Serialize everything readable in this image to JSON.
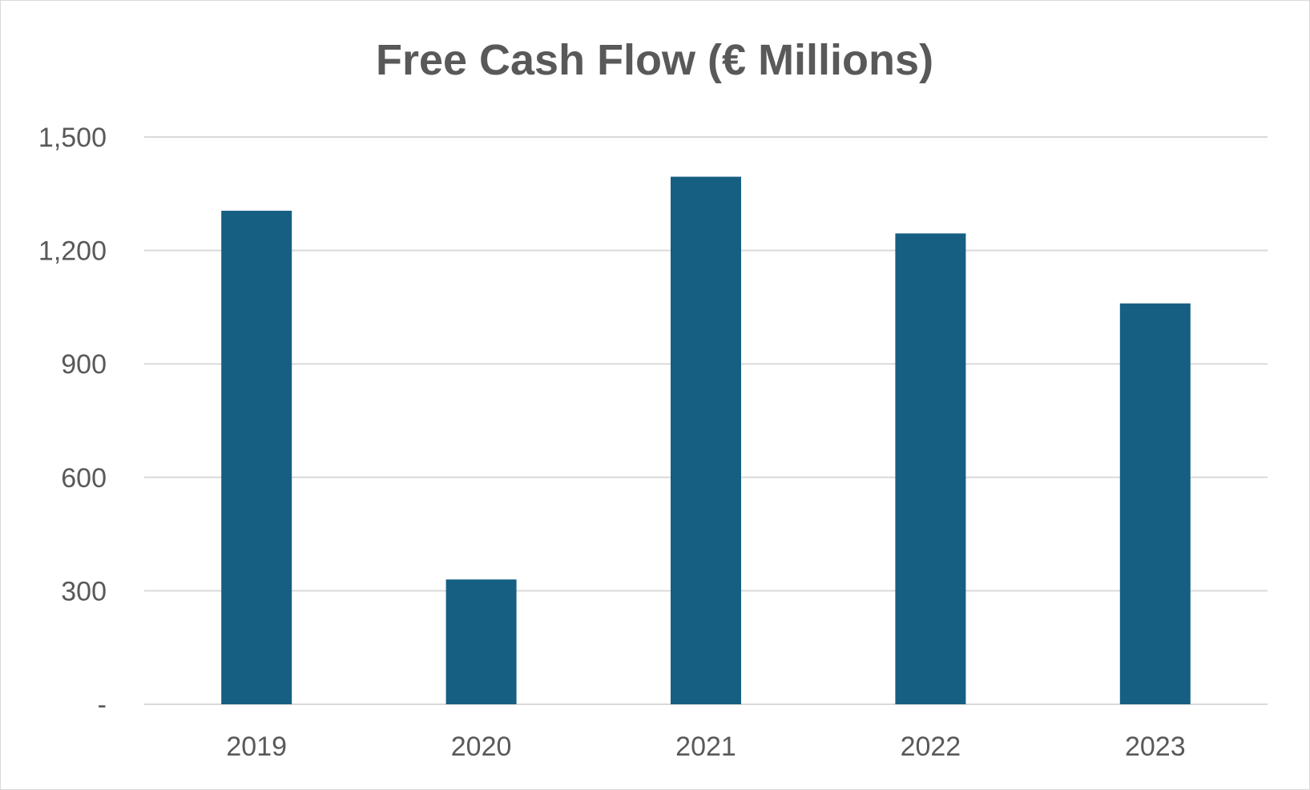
{
  "chart_data": {
    "type": "bar",
    "title": "Free Cash Flow (€ Millions)",
    "xlabel": "",
    "ylabel": "",
    "categories": [
      "2019",
      "2020",
      "2021",
      "2022",
      "2023"
    ],
    "values": [
      1305,
      330,
      1395,
      1245,
      1060
    ],
    "ylim": [
      0,
      1500
    ],
    "yticks": [
      0,
      300,
      600,
      900,
      1200,
      1500
    ],
    "ytick_labels": [
      "-",
      "300",
      "600",
      "900",
      "1,200",
      "1,500"
    ],
    "grid": true,
    "legend": "none",
    "bar_color": "#165f82"
  }
}
